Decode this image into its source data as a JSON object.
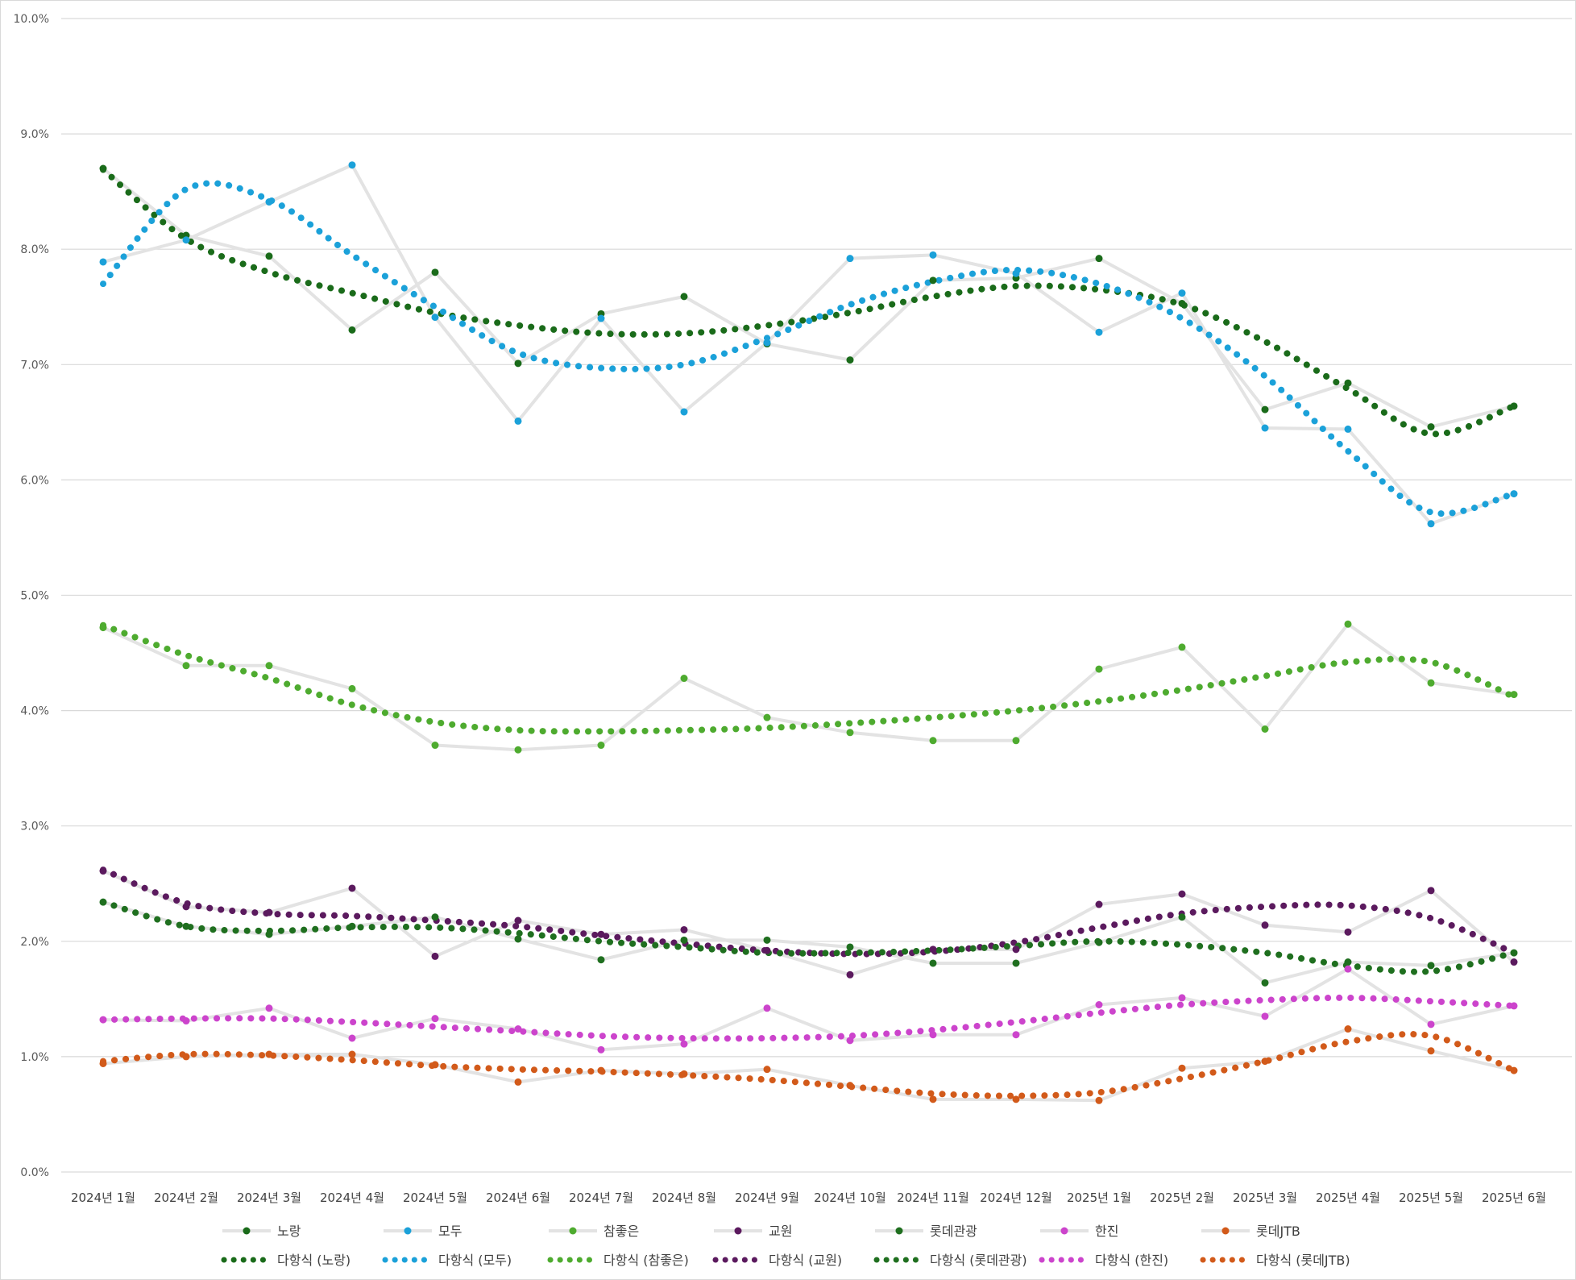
{
  "chart_data": {
    "type": "line",
    "y_axis": {
      "min": 0,
      "max": 10,
      "step": 1,
      "tick_labels": [
        "0.0%",
        "1.0%",
        "2.0%",
        "3.0%",
        "4.0%",
        "5.0%",
        "6.0%",
        "7.0%",
        "8.0%",
        "9.0%",
        "10.0%"
      ],
      "unit": "%"
    },
    "grid": true,
    "legend_position": "bottom",
    "categories": [
      "2024년 1월",
      "2024년 2월",
      "2024년 3월",
      "2024년 4월",
      "2024년 5월",
      "2024년 6월",
      "2024년 7월",
      "2024년 8월",
      "2024년 9월",
      "2024년 10월",
      "2024년 11월",
      "2024년 12월",
      "2025년 1월",
      "2025년 2월",
      "2025년 3월",
      "2025년 4월",
      "2025년 5월",
      "2025년 6월"
    ],
    "series": [
      {
        "name": "노랑",
        "color": "#1a6b1a",
        "values": [
          8.7,
          8.12,
          7.94,
          7.3,
          7.8,
          7.01,
          7.44,
          7.59,
          7.18,
          7.04,
          7.73,
          7.75,
          7.92,
          7.53,
          6.61,
          6.84,
          6.46,
          6.64
        ]
      },
      {
        "name": "모두",
        "color": "#1ba1d9",
        "values": [
          7.89,
          8.08,
          8.41,
          8.73,
          7.41,
          6.51,
          7.4,
          6.59,
          7.19,
          7.92,
          7.95,
          7.79,
          7.28,
          7.62,
          6.45,
          6.44,
          5.62,
          5.88
        ]
      },
      {
        "name": "참좋은",
        "color": "#4eab2f",
        "values": [
          4.72,
          4.39,
          4.39,
          4.19,
          3.7,
          3.66,
          3.7,
          4.28,
          3.94,
          3.81,
          3.74,
          3.74,
          4.36,
          4.55,
          3.84,
          4.75,
          4.24,
          4.14
        ]
      },
      {
        "name": "교원",
        "color": "#5b1a5e",
        "values": [
          2.61,
          2.3,
          2.25,
          2.46,
          1.87,
          2.18,
          2.06,
          2.1,
          1.92,
          1.71,
          1.93,
          1.93,
          2.32,
          2.41,
          2.14,
          2.08,
          2.44,
          1.82
        ]
      },
      {
        "name": "롯데관광",
        "color": "#1f6f1f",
        "values": [
          2.34,
          2.13,
          2.06,
          2.13,
          2.21,
          2.02,
          1.84,
          2.01,
          2.01,
          1.95,
          1.81,
          1.81,
          1.99,
          2.21,
          1.64,
          1.82,
          1.79,
          1.9
        ]
      },
      {
        "name": "한진",
        "color": "#cc44cc",
        "values": [
          1.32,
          1.31,
          1.42,
          1.16,
          1.33,
          1.24,
          1.06,
          1.11,
          1.42,
          1.14,
          1.19,
          1.19,
          1.45,
          1.51,
          1.35,
          1.76,
          1.28,
          1.44
        ]
      },
      {
        "name": "롯데JTB",
        "color": "#d25a1a",
        "values": [
          0.94,
          1.0,
          1.02,
          1.02,
          0.93,
          0.78,
          0.88,
          0.85,
          0.89,
          0.75,
          0.63,
          0.63,
          0.62,
          0.9,
          0.96,
          1.24,
          1.05,
          0.88
        ]
      }
    ],
    "trendlines": [
      {
        "name": "다항식 (노랑)",
        "series": "노랑",
        "color": "#1a6b1a",
        "values": [
          8.69,
          8.09,
          7.8,
          7.62,
          7.45,
          7.34,
          7.27,
          7.27,
          7.34,
          7.45,
          7.59,
          7.68,
          7.65,
          7.52,
          7.2,
          6.79,
          6.4,
          6.64
        ]
      },
      {
        "name": "다항식 (모두)",
        "series": "모두",
        "color": "#1ba1d9",
        "values": [
          7.7,
          8.52,
          8.43,
          7.95,
          7.5,
          7.1,
          6.97,
          7.0,
          7.23,
          7.52,
          7.72,
          7.82,
          7.7,
          7.4,
          6.9,
          6.25,
          5.72,
          5.88
        ]
      },
      {
        "name": "다항식 (참좋은)",
        "series": "참좋은",
        "color": "#4eab2f",
        "values": [
          4.74,
          4.48,
          4.28,
          4.05,
          3.9,
          3.83,
          3.82,
          3.83,
          3.85,
          3.89,
          3.94,
          4.0,
          4.08,
          4.18,
          4.3,
          4.42,
          4.42,
          4.12
        ]
      },
      {
        "name": "다항식 (교원)",
        "series": "교원",
        "color": "#5b1a5e",
        "values": [
          2.62,
          2.33,
          2.24,
          2.22,
          2.18,
          2.13,
          2.05,
          1.98,
          1.92,
          1.89,
          1.91,
          1.99,
          2.12,
          2.24,
          2.3,
          2.31,
          2.2,
          1.9
        ]
      },
      {
        "name": "다항식 (롯데관광)",
        "series": "롯데관광",
        "color": "#1f6f1f",
        "values": [
          2.34,
          2.13,
          2.09,
          2.12,
          2.12,
          2.07,
          2.0,
          1.95,
          1.9,
          1.9,
          1.92,
          1.96,
          2.0,
          1.97,
          1.9,
          1.79,
          1.74,
          1.9
        ]
      },
      {
        "name": "다항식 (한진)",
        "series": "한진",
        "color": "#cc44cc",
        "values": [
          1.32,
          1.33,
          1.33,
          1.3,
          1.26,
          1.22,
          1.18,
          1.16,
          1.16,
          1.18,
          1.23,
          1.3,
          1.38,
          1.45,
          1.49,
          1.51,
          1.48,
          1.44
        ]
      },
      {
        "name": "다항식 (롯데JTB)",
        "series": "롯데JTB",
        "color": "#d25a1a",
        "values": [
          0.96,
          1.02,
          1.01,
          0.97,
          0.92,
          0.89,
          0.87,
          0.84,
          0.8,
          0.74,
          0.68,
          0.66,
          0.69,
          0.81,
          0.96,
          1.13,
          1.18,
          0.88
        ]
      }
    ]
  }
}
